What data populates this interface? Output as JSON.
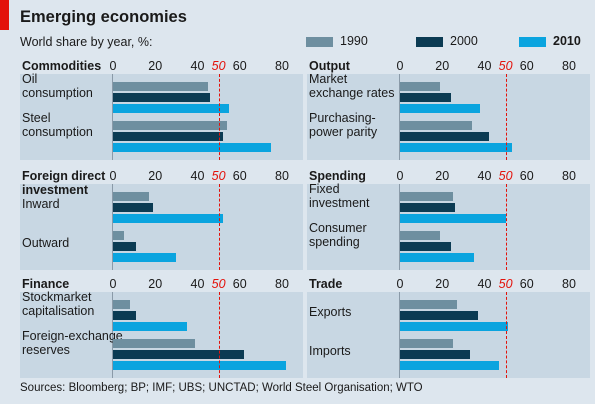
{
  "title": "Emerging economies",
  "subtitle": "World share by year, %:",
  "legend": [
    {
      "label": "1990",
      "color": "#6e8fa0"
    },
    {
      "label": "2000",
      "color": "#0b3b53"
    },
    {
      "label": "2010",
      "color": "#0aa4df"
    }
  ],
  "source": "Sources: Bloomberg; BP; IMF; UBS; UNCTAD; World Steel Organisation; WTO",
  "chart_data": {
    "type": "bar",
    "orientation": "horizontal",
    "series_names": [
      "1990",
      "2000",
      "2010"
    ],
    "xlim": [
      0,
      80
    ],
    "x_ticks": [
      "0",
      "20",
      "40",
      "50",
      "60",
      "80"
    ],
    "reference_line": 50,
    "panels": [
      {
        "title": "Commodities",
        "categories": [
          {
            "label": "Oil\nconsumption",
            "values": [
              45,
              46,
              55
            ]
          },
          {
            "label": "Steel\nconsumption",
            "values": [
              54,
              52,
              75
            ]
          }
        ]
      },
      {
        "title": "Output",
        "categories": [
          {
            "label": "Market\nexchange rates",
            "values": [
              19,
              24,
              38
            ]
          },
          {
            "label": "Purchasing-\npower parity",
            "values": [
              34,
              42,
              53
            ]
          }
        ]
      },
      {
        "title": "Foreign direct\ninvestment",
        "categories": [
          {
            "label": "Inward",
            "values": [
              17,
              19,
              52
            ]
          },
          {
            "label": "Outward",
            "values": [
              5,
              11,
              30
            ]
          }
        ]
      },
      {
        "title": "Spending",
        "categories": [
          {
            "label": "Fixed\ninvestment",
            "values": [
              25,
              26,
              50
            ]
          },
          {
            "label": "Consumer\nspending",
            "values": [
              19,
              24,
              35
            ]
          }
        ]
      },
      {
        "title": "Finance",
        "categories": [
          {
            "label": "Stockmarket\ncapitalisation",
            "values": [
              8,
              11,
              35
            ]
          },
          {
            "label": "Foreign-exchange\nreserves",
            "values": [
              39,
              62,
              82
            ]
          }
        ]
      },
      {
        "title": "Trade",
        "categories": [
          {
            "label": "Exports",
            "values": [
              27,
              37,
              51
            ]
          },
          {
            "label": "Imports",
            "values": [
              25,
              33,
              47
            ]
          }
        ]
      }
    ]
  }
}
